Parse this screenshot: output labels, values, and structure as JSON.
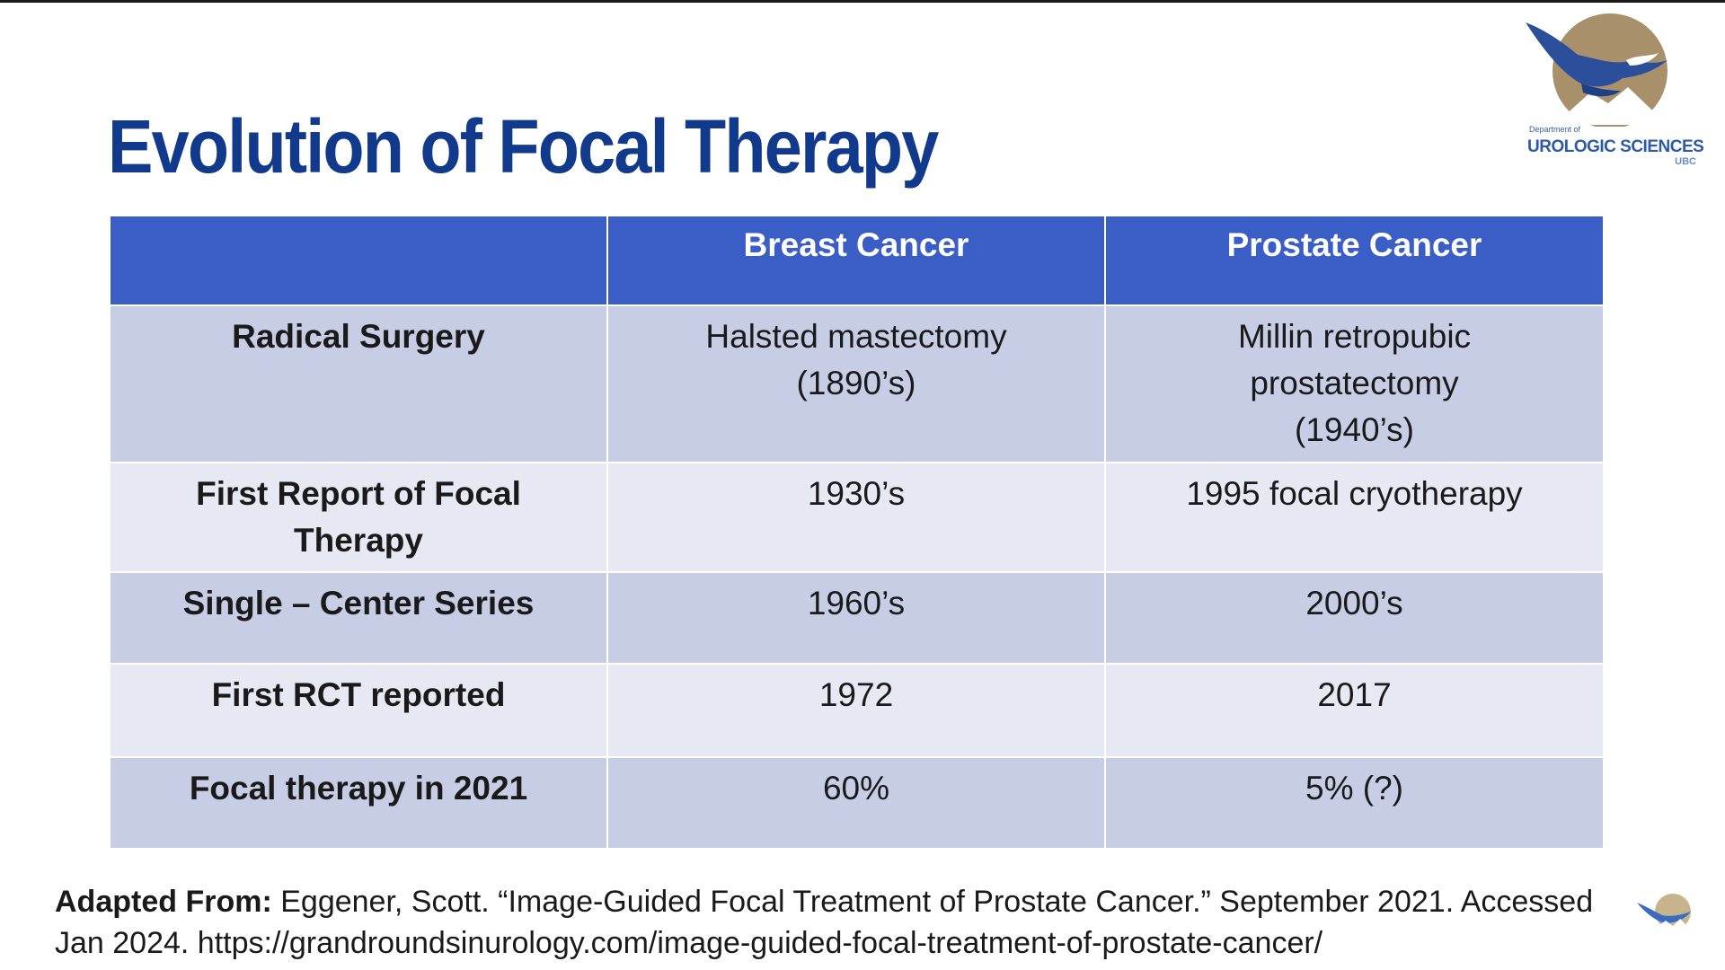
{
  "slide": {
    "title": "Evolution of Focal Therapy",
    "logo": {
      "line1": "Department of",
      "line2": "UROLOGIC SCIENCES",
      "line3": "UBC"
    },
    "table": {
      "headers": [
        "",
        "Breast Cancer",
        "Prostate Cancer"
      ],
      "rows": [
        {
          "label": "Radical Surgery",
          "breast": "Halsted mastectomy (1890’s)",
          "prostate": "Millin retropubic prostatectomy (1940’s)"
        },
        {
          "label": "First Report of Focal Therapy",
          "breast": "1930’s",
          "prostate": "1995 focal cryotherapy"
        },
        {
          "label": "Single – Center Series",
          "breast": "1960’s",
          "prostate": "2000’s"
        },
        {
          "label": "First RCT reported",
          "breast": "1972",
          "prostate": "2017"
        },
        {
          "label": "Focal therapy in 2021",
          "breast": "60%",
          "prostate": "5% (?)"
        }
      ]
    },
    "citation": {
      "prefix": "Adapted From:",
      "text": " Eggener, Scott. “Image-Guided Focal Treatment of Prostate Cancer.” September 2021. Accessed Jan 2024. https://grandroundsinurology.com/image-guided-focal-treatment-of-prostate-cancer/"
    },
    "colors": {
      "title": "#123a8c",
      "header_bg": "#3b5ec6",
      "row_band": "#c8cde6",
      "row_light": "#e6e8f3",
      "logo_gold": "#a8916a",
      "logo_blue": "#2c5aa8"
    }
  }
}
